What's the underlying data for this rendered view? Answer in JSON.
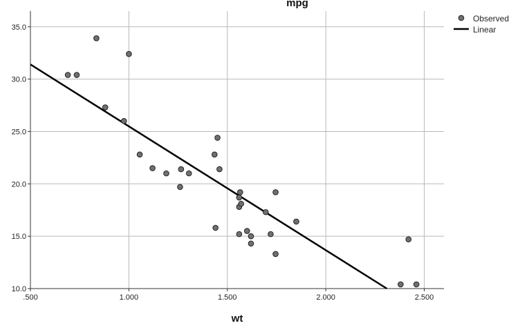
{
  "chart_data": {
    "type": "scatter",
    "title": "mpg",
    "xlabel": "wt",
    "ylabel": "",
    "xlim": [
      0.5,
      2.6
    ],
    "ylim": [
      10.0,
      36.5
    ],
    "x_ticks": [
      0.5,
      1.0,
      1.5,
      2.0,
      2.5
    ],
    "x_tick_labels": [
      ".500",
      "1.000",
      "1.500",
      "2.000",
      "2.500"
    ],
    "y_ticks": [
      10,
      15,
      20,
      25,
      30,
      35
    ],
    "y_tick_labels": [
      "10.0",
      "15.0",
      "20.0",
      "25.0",
      "30.0",
      "35.0"
    ],
    "grid": true,
    "legend_position": "top-right",
    "legend": [
      {
        "label": "Observed",
        "kind": "marker",
        "color": "#707070"
      },
      {
        "label": "Linear",
        "kind": "line",
        "color": "#000000"
      }
    ],
    "series": [
      {
        "name": "Observed",
        "color": "#707070",
        "points": [
          [
            0.69,
            30.4
          ],
          [
            0.735,
            30.4
          ],
          [
            0.835,
            33.9
          ],
          [
            0.88,
            27.3
          ],
          [
            0.975,
            26.0
          ],
          [
            1.0,
            32.4
          ],
          [
            1.055,
            22.8
          ],
          [
            1.12,
            21.5
          ],
          [
            1.19,
            21.0
          ],
          [
            1.26,
            19.7
          ],
          [
            1.265,
            21.4
          ],
          [
            1.305,
            21.0
          ],
          [
            1.435,
            22.8
          ],
          [
            1.44,
            15.8
          ],
          [
            1.45,
            24.4
          ],
          [
            1.46,
            21.4
          ],
          [
            1.56,
            15.2
          ],
          [
            1.56,
            18.7
          ],
          [
            1.56,
            17.8
          ],
          [
            1.565,
            19.2
          ],
          [
            1.57,
            18.1
          ],
          [
            1.6,
            15.5
          ],
          [
            1.62,
            15.0
          ],
          [
            1.62,
            14.3
          ],
          [
            1.695,
            17.3
          ],
          [
            1.72,
            15.2
          ],
          [
            1.745,
            19.2
          ],
          [
            1.745,
            13.3
          ],
          [
            1.85,
            16.4
          ],
          [
            2.38,
            10.4
          ],
          [
            2.42,
            14.7
          ],
          [
            2.46,
            10.4
          ]
        ]
      }
    ],
    "fit_line": {
      "name": "Linear",
      "color": "#000000",
      "points": [
        [
          0.5,
          31.4
        ],
        [
          2.31,
          10.0
        ]
      ]
    }
  }
}
